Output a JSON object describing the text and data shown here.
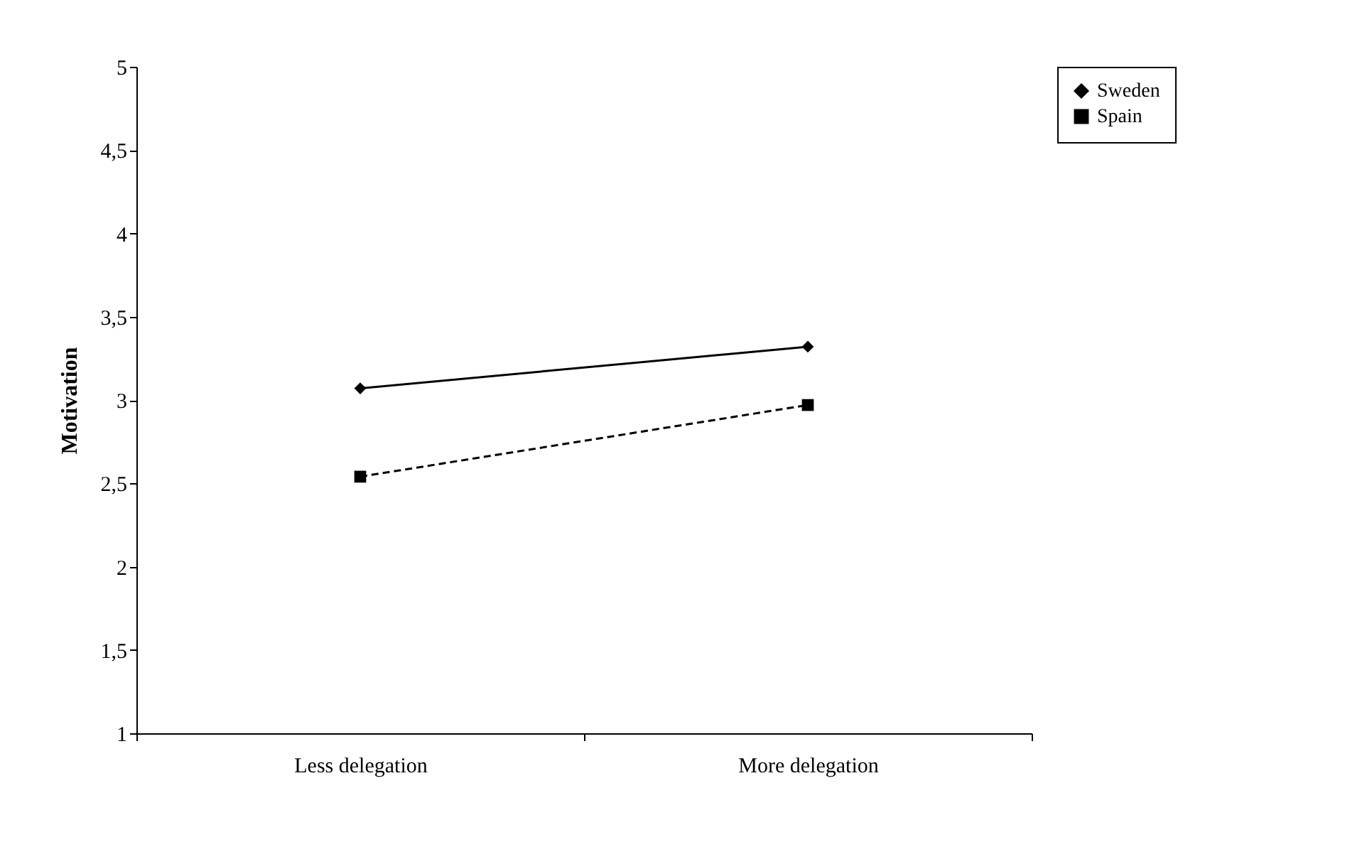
{
  "chart_data": {
    "type": "line",
    "ylabel": "Motivation",
    "categories": [
      "Less delegation",
      "More delegation"
    ],
    "series": [
      {
        "name": "Sweden",
        "color": "#000000",
        "values": [
          3.07,
          3.32
        ],
        "marker": "diamond",
        "line_style": "solid"
      },
      {
        "name": "Spain",
        "color": "#000000",
        "values": [
          2.54,
          2.97
        ],
        "marker": "square",
        "line_style": "dashed"
      }
    ],
    "ylim": [
      1,
      5
    ],
    "yticks": [
      1,
      {
        "value": 1.5,
        "label": "1,5"
      },
      2,
      {
        "value": 2.5,
        "label": "2,5"
      },
      3,
      {
        "value": 3.5,
        "label": "3,5"
      },
      4,
      {
        "value": 4.5,
        "label": "4,5"
      },
      5
    ],
    "grid": false,
    "legend": "right"
  }
}
